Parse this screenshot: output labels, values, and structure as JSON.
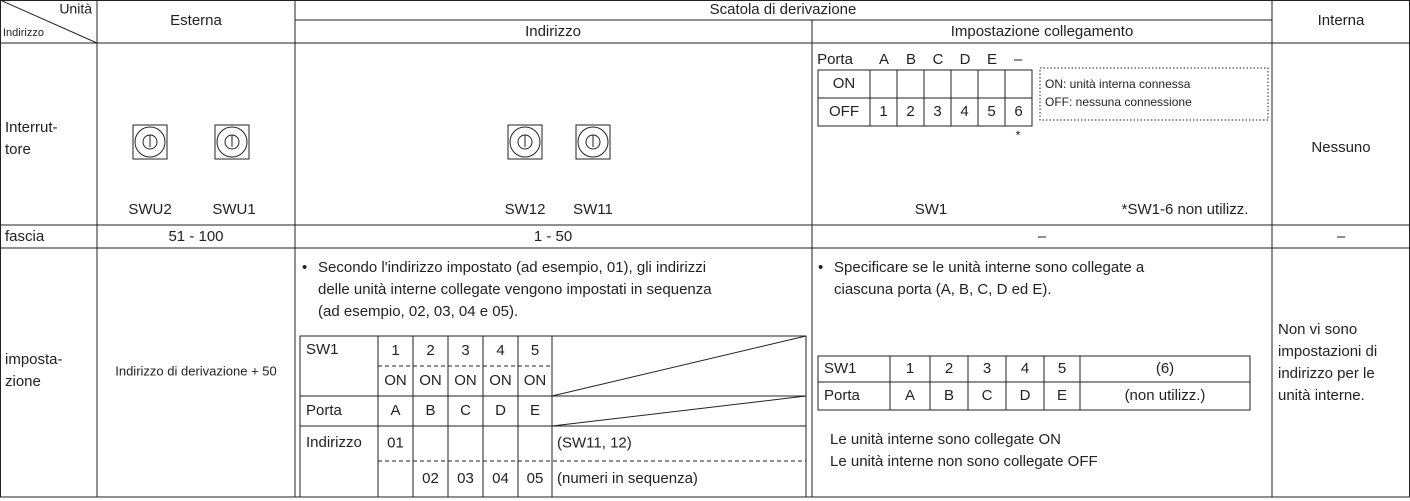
{
  "header": {
    "corner_unit": "Unità",
    "corner_address": "Indirizzo",
    "outdoor": "Esterna",
    "branch_box": "Scatola di derivazione",
    "address": "Indirizzo",
    "connection_setting": "Impostazione collegamento",
    "indoor": "Interna"
  },
  "switch_row": {
    "label_lines": [
      "Interrut-",
      "tore"
    ],
    "outdoor_switches": [
      "SWU2",
      "SWU1"
    ],
    "branch_switches": [
      "SW12",
      "SW11"
    ],
    "dip": {
      "header": [
        "Porta",
        "A",
        "B",
        "C",
        "D",
        "E",
        "–"
      ],
      "on": "ON",
      "off": [
        "OFF",
        "1",
        "2",
        "3",
        "4",
        "5",
        "6"
      ],
      "footnote_mark": "*",
      "legend": [
        "ON:  unità interna connessa",
        "OFF: nessuna connessione"
      ],
      "switch": "SW1",
      "footnote": "*SW1-6 non utilizz."
    },
    "indoor": "Nessuno"
  },
  "range_row": {
    "label": "fascia",
    "outdoor": "51 - 100",
    "branch_address": "1 - 50",
    "connection": "–",
    "indoor": "–"
  },
  "setting_row": {
    "label_lines": [
      "imposta-",
      "zione"
    ],
    "outdoor": "Indirizzo di derivazione + 50",
    "address_bullet": "•",
    "address_text_lines": [
      "Secondo l'indirizzo impostato (ad esempio, 01), gli indirizzi",
      "delle unità interne collegate vengono impostati in sequenza",
      "(ad esempio, 02, 03, 04 e 05)."
    ],
    "address_table": [
      [
        "SW1",
        "1",
        "2",
        "3",
        "4",
        "5",
        null
      ],
      [
        null,
        "ON",
        "ON",
        "ON",
        "ON",
        "ON",
        null
      ],
      [
        "Porta",
        "A",
        "B",
        "C",
        "D",
        "E",
        null
      ],
      [
        "Indirizzo",
        "01",
        null,
        null,
        null,
        null,
        "(SW11, 12)"
      ],
      [
        null,
        null,
        "02",
        "03",
        "04",
        "05",
        "(numeri in sequenza)"
      ]
    ],
    "connection_bullet": "•",
    "connection_text_lines": [
      "Specificare se le unità interne sono collegate a",
      "ciascuna porta (A, B, C, D ed E)."
    ],
    "connection_table": [
      [
        "SW1",
        "1",
        "2",
        "3",
        "4",
        "5",
        "(6)"
      ],
      [
        "Porta",
        "A",
        "B",
        "C",
        "D",
        "E",
        "(non utilizz.)"
      ]
    ],
    "connection_notes": [
      "Le unità interne sono collegate ON",
      "Le unità interne non sono collegate OFF"
    ],
    "indoor_lines": [
      "Non vi sono",
      "impostazioni di",
      "indirizzo per le",
      "unità interne."
    ]
  }
}
